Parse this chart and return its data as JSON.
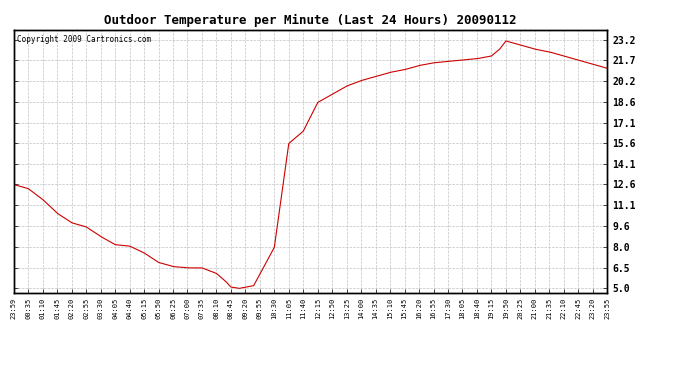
{
  "title": "Outdoor Temperature per Minute (Last 24 Hours) 20090112",
  "copyright_text": "Copyright 2009 Cartronics.com",
  "line_color": "#cc0000",
  "background_color": "#ffffff",
  "plot_bg_color": "#ffffff",
  "grid_color": "#bbbbbb",
  "yticks": [
    5.0,
    6.5,
    8.0,
    9.6,
    11.1,
    12.6,
    14.1,
    15.6,
    17.1,
    18.6,
    20.2,
    21.7,
    23.2
  ],
  "ylim": [
    4.7,
    23.9
  ],
  "xtick_labels": [
    "23:59",
    "00:35",
    "01:10",
    "01:45",
    "02:20",
    "02:55",
    "03:30",
    "04:05",
    "04:40",
    "05:15",
    "05:50",
    "06:25",
    "07:00",
    "07:35",
    "08:10",
    "08:45",
    "09:20",
    "09:55",
    "10:30",
    "11:05",
    "11:40",
    "12:15",
    "12:50",
    "13:25",
    "14:00",
    "14:35",
    "15:10",
    "15:45",
    "16:20",
    "16:55",
    "17:30",
    "18:05",
    "18:40",
    "19:15",
    "19:50",
    "20:25",
    "21:00",
    "21:35",
    "22:10",
    "22:45",
    "23:20",
    "23:55"
  ],
  "key_times": [
    0,
    35,
    70,
    105,
    140,
    175,
    210,
    245,
    280,
    315,
    350,
    385,
    420,
    455,
    490,
    513,
    525,
    545,
    580,
    630,
    665,
    700,
    735,
    770,
    805,
    840,
    875,
    910,
    945,
    980,
    1015,
    1050,
    1085,
    1120,
    1155,
    1175,
    1190,
    1225,
    1260,
    1295,
    1330,
    1365,
    1400,
    1435
  ],
  "key_values": [
    12.6,
    12.3,
    11.5,
    10.5,
    9.8,
    9.5,
    8.8,
    8.2,
    8.1,
    7.6,
    6.9,
    6.6,
    6.5,
    6.5,
    6.1,
    5.5,
    5.1,
    5.0,
    5.2,
    8.0,
    15.6,
    16.5,
    18.6,
    19.2,
    19.8,
    20.2,
    20.5,
    20.8,
    21.0,
    21.3,
    21.5,
    21.6,
    21.7,
    21.8,
    22.0,
    22.5,
    23.1,
    22.8,
    22.5,
    22.3,
    22.0,
    21.7,
    21.4,
    21.1
  ]
}
